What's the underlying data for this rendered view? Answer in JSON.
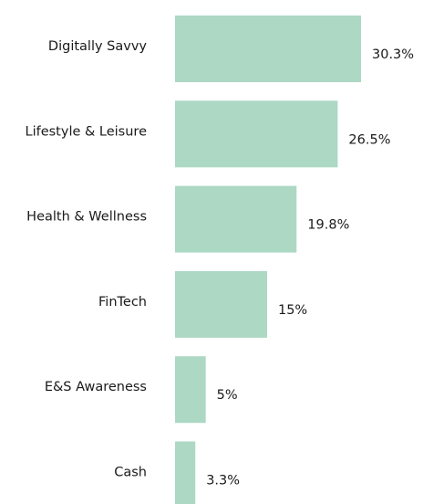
{
  "chart_data": {
    "type": "bar",
    "orientation": "horizontal",
    "categories": [
      "Digitally Savvy",
      "Lifestyle & Leisure",
      "Health & Wellness",
      "FinTech",
      "E&S Awareness",
      "Cash"
    ],
    "values": [
      30.3,
      26.5,
      19.8,
      15,
      5,
      3.3
    ],
    "value_labels": [
      "30.3%",
      "26.5%",
      "19.8%",
      "15%",
      "5%",
      "3.3%"
    ],
    "color": "#acd8c4"
  }
}
